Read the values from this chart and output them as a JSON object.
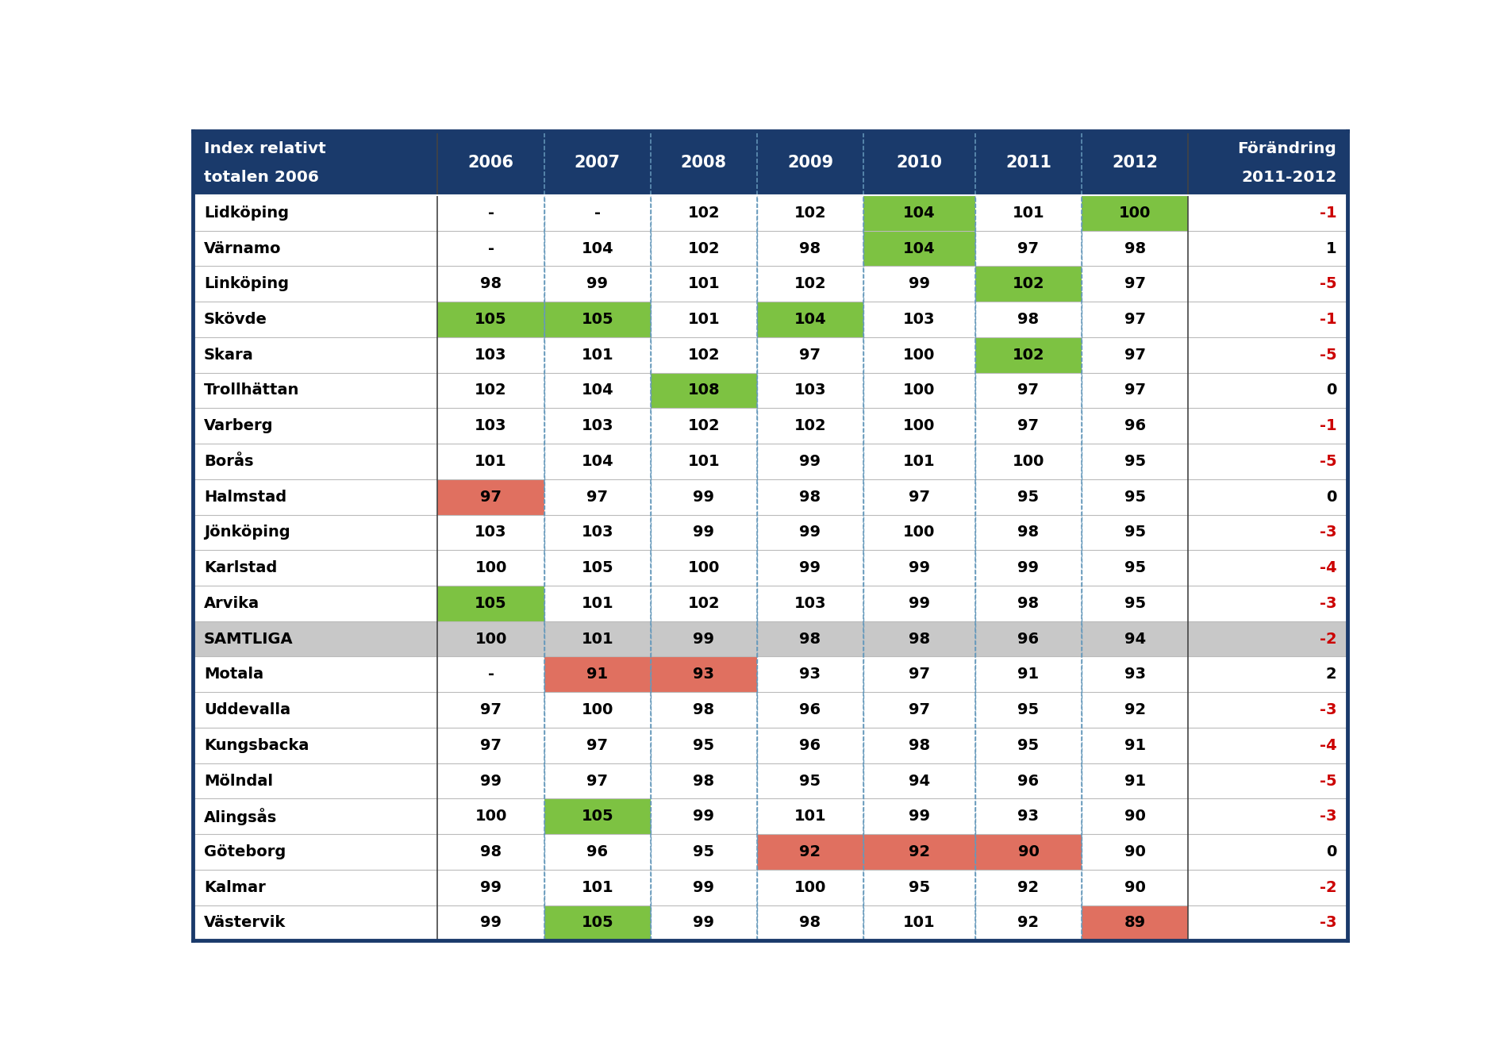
{
  "header_bg": "#1a3a6b",
  "header_text_color": "#ffffff",
  "row_bg_white": "#ffffff",
  "row_bg_alt": "#e0e0e0",
  "samtliga_bg": "#c8c8c8",
  "green_cell": "#7dc242",
  "red_cell": "#e07060",
  "change_red": "#cc0000",
  "change_black": "#000000",
  "border_color": "#1a3a6b",
  "dashed_color": "#6699bb",
  "years": [
    "2006",
    "2007",
    "2008",
    "2009",
    "2010",
    "2011",
    "2012"
  ],
  "rows": [
    {
      "city": "Lidköping",
      "vals": [
        null,
        null,
        102,
        102,
        104,
        101,
        100
      ],
      "change": -1,
      "green_cells": [
        4,
        6
      ],
      "red_cells": []
    },
    {
      "city": "Värnamo",
      "vals": [
        null,
        104,
        102,
        98,
        104,
        97,
        98
      ],
      "change": 1,
      "green_cells": [
        4
      ],
      "red_cells": []
    },
    {
      "city": "Linköping",
      "vals": [
        98,
        99,
        101,
        102,
        99,
        102,
        97
      ],
      "change": -5,
      "green_cells": [
        5
      ],
      "red_cells": []
    },
    {
      "city": "Skövde",
      "vals": [
        105,
        105,
        101,
        104,
        103,
        98,
        97
      ],
      "change": -1,
      "green_cells": [
        0,
        1,
        3
      ],
      "red_cells": []
    },
    {
      "city": "Skara",
      "vals": [
        103,
        101,
        102,
        97,
        100,
        102,
        97
      ],
      "change": -5,
      "green_cells": [
        5
      ],
      "red_cells": []
    },
    {
      "city": "Trollhättan",
      "vals": [
        102,
        104,
        108,
        103,
        100,
        97,
        97
      ],
      "change": 0,
      "green_cells": [
        2
      ],
      "red_cells": []
    },
    {
      "city": "Varberg",
      "vals": [
        103,
        103,
        102,
        102,
        100,
        97,
        96
      ],
      "change": -1,
      "green_cells": [],
      "red_cells": []
    },
    {
      "city": "Borås",
      "vals": [
        101,
        104,
        101,
        99,
        101,
        100,
        95
      ],
      "change": -5,
      "green_cells": [],
      "red_cells": []
    },
    {
      "city": "Halmstad",
      "vals": [
        97,
        97,
        99,
        98,
        97,
        95,
        95
      ],
      "change": 0,
      "green_cells": [],
      "red_cells": [
        0
      ]
    },
    {
      "city": "Jönköping",
      "vals": [
        103,
        103,
        99,
        99,
        100,
        98,
        95
      ],
      "change": -3,
      "green_cells": [],
      "red_cells": []
    },
    {
      "city": "Karlstad",
      "vals": [
        100,
        105,
        100,
        99,
        99,
        99,
        95
      ],
      "change": -4,
      "green_cells": [],
      "red_cells": []
    },
    {
      "city": "Arvika",
      "vals": [
        105,
        101,
        102,
        103,
        99,
        98,
        95
      ],
      "change": -3,
      "green_cells": [
        0
      ],
      "red_cells": []
    },
    {
      "city": "SAMTLIGA",
      "vals": [
        100,
        101,
        99,
        98,
        98,
        96,
        94
      ],
      "change": -2,
      "green_cells": [],
      "red_cells": [],
      "special": "samtliga"
    },
    {
      "city": "Motala",
      "vals": [
        null,
        91,
        93,
        93,
        97,
        91,
        93
      ],
      "change": 2,
      "green_cells": [],
      "red_cells": [
        1,
        2
      ]
    },
    {
      "city": "Uddevalla",
      "vals": [
        97,
        100,
        98,
        96,
        97,
        95,
        92
      ],
      "change": -3,
      "green_cells": [],
      "red_cells": []
    },
    {
      "city": "Kungsbacka",
      "vals": [
        97,
        97,
        95,
        96,
        98,
        95,
        91
      ],
      "change": -4,
      "green_cells": [],
      "red_cells": []
    },
    {
      "city": "Mölndal",
      "vals": [
        99,
        97,
        98,
        95,
        94,
        96,
        91
      ],
      "change": -5,
      "green_cells": [],
      "red_cells": []
    },
    {
      "city": "Alingsås",
      "vals": [
        100,
        105,
        99,
        101,
        99,
        93,
        90
      ],
      "change": -3,
      "green_cells": [
        1
      ],
      "red_cells": []
    },
    {
      "city": "Göteborg",
      "vals": [
        98,
        96,
        95,
        92,
        92,
        90,
        90
      ],
      "change": 0,
      "green_cells": [],
      "red_cells": [
        3,
        4,
        5
      ]
    },
    {
      "city": "Kalmar",
      "vals": [
        99,
        101,
        99,
        100,
        95,
        92,
        90
      ],
      "change": -2,
      "green_cells": [],
      "red_cells": []
    },
    {
      "city": "Västervik",
      "vals": [
        99,
        105,
        99,
        98,
        101,
        92,
        89
      ],
      "change": -3,
      "green_cells": [
        1
      ],
      "red_cells": [
        6
      ]
    }
  ]
}
